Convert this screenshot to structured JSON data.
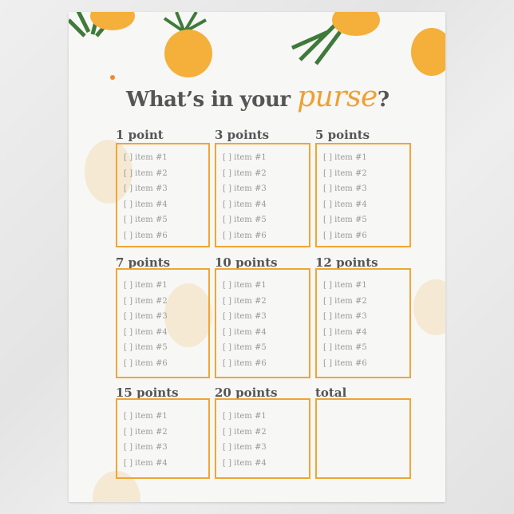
{
  "title": {
    "main": "What’s in your ",
    "accent": "purse",
    "end": "?"
  },
  "colors": {
    "accent": "#f0a535",
    "heading": "#555555",
    "item": "#999999"
  },
  "sections": [
    {
      "heading": "1 point",
      "items": [
        "[ ] item #1",
        "[ ] item #2",
        "[ ] item #3",
        "[ ] item #4",
        "[ ] item #5",
        "[ ] item #6"
      ]
    },
    {
      "heading": "3 points",
      "items": [
        "[ ] item #1",
        "[ ] item #2",
        "[ ] item #3",
        "[ ] item #4",
        "[ ] item #5",
        "[ ] item #6"
      ]
    },
    {
      "heading": "5 points",
      "items": [
        "[ ] item #1",
        "[ ] item #2",
        "[ ] item #3",
        "[ ] item #4",
        "[ ] item #5",
        "[ ] item #6"
      ]
    },
    {
      "heading": "7 points",
      "items": [
        "[ ] item #1",
        "[ ] item #2",
        "[ ] item #3",
        "[ ] item #4",
        "[ ] item #5",
        "[ ] item #6"
      ]
    },
    {
      "heading": "10 points",
      "items": [
        "[ ] item #1",
        "[ ] item #2",
        "[ ] item #3",
        "[ ] item #4",
        "[ ] item #5",
        "[ ] item #6"
      ]
    },
    {
      "heading": "12 points",
      "items": [
        "[ ] item #1",
        "[ ] item #2",
        "[ ] item #3",
        "[ ] item #4",
        "[ ] item #5",
        "[ ] item #6"
      ]
    },
    {
      "heading": "15 points",
      "items": [
        "[ ] item #1",
        "[ ] item #2",
        "[ ] item #3",
        "[ ] item #4"
      ]
    },
    {
      "heading": "20 points",
      "items": [
        "[ ] item #1",
        "[ ] item #2",
        "[ ] item #3",
        "[ ] item #4"
      ]
    },
    {
      "heading": "total",
      "items": []
    }
  ]
}
